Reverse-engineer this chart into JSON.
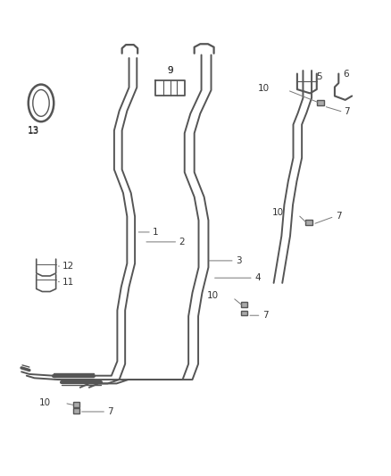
{
  "bg_color": "#ffffff",
  "line_color": "#888888",
  "line_color_dark": "#555555",
  "label_color": "#333333",
  "fig_width": 4.38,
  "fig_height": 5.33,
  "dpi": 100,
  "arrow_color": "#777777"
}
